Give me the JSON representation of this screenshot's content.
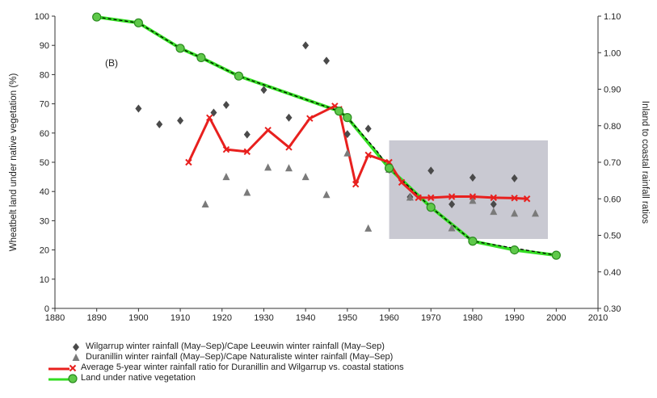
{
  "chart_data": {
    "type": "line",
    "panel_label": "(B)",
    "xlim": [
      1880,
      2010
    ],
    "x_ticks": [
      "1880",
      "1890",
      "1900",
      "1910",
      "1920",
      "1930",
      "1940",
      "1950",
      "1960",
      "1970",
      "1980",
      "1990",
      "2000",
      "2010"
    ],
    "ylabel_left": "Wheatbelt land under native vegetation (%)",
    "ylim_left": [
      0,
      100
    ],
    "y_ticks_left": [
      "0",
      "10",
      "20",
      "30",
      "40",
      "50",
      "60",
      "70",
      "80",
      "90",
      "100"
    ],
    "ylabel_right": "Inland to coastal rainfall ratios",
    "ylim_right": [
      0.3,
      1.1
    ],
    "y_ticks_right": [
      "0.30",
      "0.40",
      "0.50",
      "0.60",
      "0.70",
      "0.80",
      "0.90",
      "1.00",
      "1.10"
    ],
    "shaded_region": {
      "x": [
        1960,
        1998
      ],
      "ratio": [
        0.49,
        0.76
      ]
    },
    "series": [
      {
        "name": "Wilgarrup winter rainfall (May–Sep)/Cape Leeuwin winter rainfall (May–Sep)",
        "marker": "diamond",
        "color": "#4a4a4a",
        "axis": "right",
        "x": [
          1900,
          1905,
          1910,
          1918,
          1921,
          1926,
          1930,
          1936,
          1940,
          1945,
          1950,
          1955,
          1960,
          1965,
          1970,
          1975,
          1980,
          1985,
          1990
        ],
        "y": [
          0.847,
          0.804,
          0.814,
          0.836,
          0.857,
          0.776,
          0.898,
          0.822,
          1.02,
          0.978,
          0.777,
          0.792,
          0.68,
          0.605,
          0.677,
          0.585,
          0.658,
          0.585,
          0.656
        ]
      },
      {
        "name": "Duranillin winter rainfall (May–Sep)/Cape Naturaliste winter rainfall (May–Sep)",
        "marker": "triangle",
        "color": "#7a7a7a",
        "axis": "right",
        "x": [
          1916,
          1921,
          1926,
          1931,
          1936,
          1940,
          1945,
          1950,
          1955,
          1960,
          1965,
          1970,
          1975,
          1980,
          1985,
          1990,
          1995
        ],
        "y": [
          0.585,
          0.66,
          0.617,
          0.686,
          0.684,
          0.66,
          0.611,
          0.725,
          0.519,
          0.68,
          0.604,
          0.58,
          0.52,
          0.595,
          0.565,
          0.56,
          0.56
        ]
      },
      {
        "name": "Average 5-year winter rainfall ratio for Duranillin and Wilgarrup vs. coastal stations",
        "marker": "x",
        "color": "#e8201e",
        "axis": "right",
        "x": [
          1912,
          1917,
          1921,
          1926,
          1931,
          1936,
          1941,
          1947,
          1948,
          1952,
          1955,
          1960,
          1963,
          1967,
          1970,
          1975,
          1980,
          1985,
          1990,
          1993
        ],
        "y": [
          0.7,
          0.822,
          0.735,
          0.729,
          0.788,
          0.741,
          0.82,
          0.854,
          0.845,
          0.64,
          0.72,
          0.7,
          0.645,
          0.603,
          0.603,
          0.606,
          0.606,
          0.603,
          0.602,
          0.6
        ]
      },
      {
        "name": "Land under native vegetation",
        "marker": "circle",
        "color": "#33dd22",
        "axis": "left",
        "x": [
          1890,
          1900,
          1910,
          1915,
          1924,
          1948,
          1950,
          1960,
          1970,
          1980,
          1990,
          2000
        ],
        "y": [
          99.7,
          97.7,
          89.0,
          85.8,
          79.5,
          67.5,
          65.3,
          48.0,
          34.6,
          23.0,
          20.0,
          18.2
        ]
      }
    ],
    "dashed_trend": {
      "color": "#000000",
      "axis": "left",
      "x": [
        1890,
        1900,
        1910,
        1915,
        1924,
        1948,
        1950,
        1957,
        1960,
        1970,
        1980,
        2000
      ],
      "y": [
        99.7,
        97.7,
        89.0,
        85.8,
        79.5,
        67.5,
        65.3,
        54.0,
        48.0,
        34.6,
        23.0,
        18.2
      ]
    },
    "legend": [
      {
        "label": "Wilgarrup winter rainfall (May–Sep)/Cape Leeuwin winter rainfall (May–Sep)",
        "marker": "diamond",
        "color": "#4a4a4a"
      },
      {
        "label": "Duranillin winter rainfall (May–Sep)/Cape Naturaliste winter rainfall (May–Sep)",
        "marker": "triangle",
        "color": "#7a7a7a"
      },
      {
        "label": "Average 5-year winter rainfall ratio for Duranillin and Wilgarrup vs. coastal stations",
        "marker": "x",
        "color": "#e8201e"
      },
      {
        "label": "Land under native vegetation",
        "marker": "circle",
        "color": "#33dd22"
      }
    ]
  }
}
